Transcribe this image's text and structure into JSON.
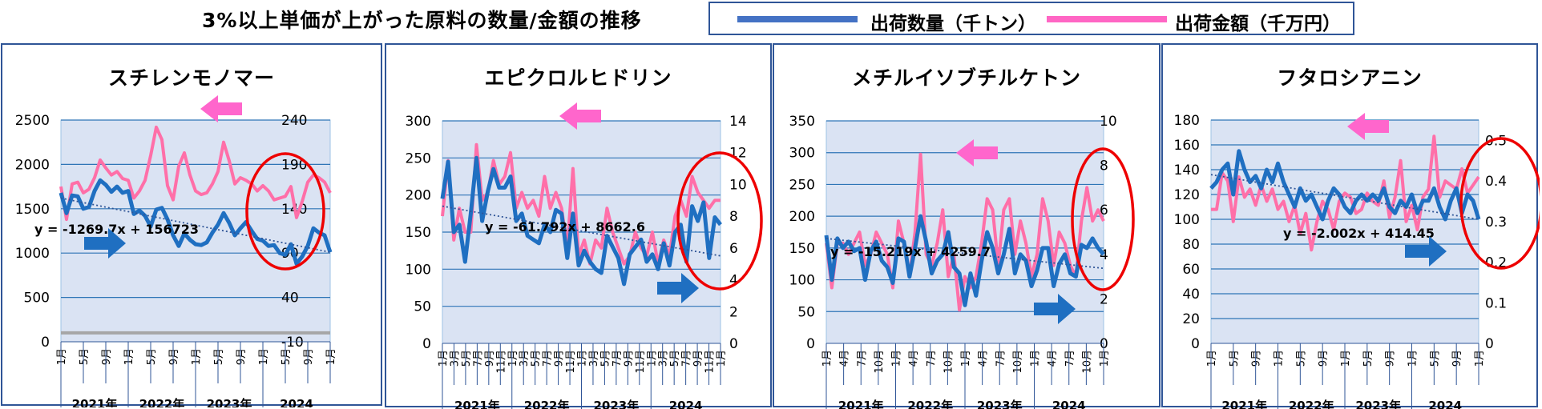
{
  "page": {
    "title": "3%以上単価が上がった原料の数量/金額の推移",
    "legend": [
      {
        "label": "出荷数量（千トン）",
        "color": "#4472c4"
      },
      {
        "label": "出荷金額（千万円）",
        "color": "#ff66c4"
      }
    ]
  },
  "chart_data": [
    {
      "type": "line",
      "title": "スチレンモノマー",
      "month_ticks": [
        "1月",
        "5月",
        "9月",
        "1月",
        "5月",
        "9月",
        "1月",
        "5月",
        "9月",
        "1月",
        "5月",
        "9月",
        "1月"
      ],
      "year_labels": [
        "2021年",
        "2022年",
        "2023年",
        "2024"
      ],
      "left_axis": {
        "min": 0,
        "max": 2500,
        "ticks": [
          0,
          500,
          1000,
          1500,
          2000,
          2500
        ]
      },
      "right_axis": {
        "min": -10,
        "max": 240,
        "ticks": [
          -10,
          40,
          90,
          140,
          190,
          240
        ]
      },
      "series": [
        {
          "name": "出荷数量（千トン）",
          "axis": "left",
          "color": "#1f6fc1",
          "values": [
            1680,
            1450,
            1650,
            1640,
            1500,
            1520,
            1700,
            1820,
            1770,
            1690,
            1750,
            1680,
            1700,
            1440,
            1480,
            1420,
            1300,
            1490,
            1510,
            1380,
            1200,
            1080,
            1220,
            1150,
            1100,
            1090,
            1120,
            1230,
            1320,
            1450,
            1340,
            1200,
            1280,
            1350,
            1250,
            1160,
            1140,
            1080,
            1090,
            1000,
            980,
            1100,
            880,
            960,
            1080,
            1280,
            1230,
            1200,
            1010
          ]
        },
        {
          "name": "出荷金額（千万円）",
          "axis": "right",
          "color": "#ff6fa8",
          "values": [
            165,
            128,
            168,
            170,
            158,
            162,
            175,
            195,
            186,
            178,
            182,
            174,
            172,
            152,
            160,
            172,
            200,
            232,
            218,
            166,
            150,
            188,
            203,
            178,
            160,
            156,
            158,
            168,
            182,
            215,
            194,
            168,
            175,
            172,
            168,
            160,
            166,
            160,
            150,
            152,
            154,
            165,
            130,
            148,
            170,
            178,
            175,
            170,
            158
          ]
        },
        {
          "name": "",
          "axis": "right",
          "color": "#a6a6a6",
          "values": [
            0,
            0,
            0,
            0,
            0,
            0,
            0,
            0,
            0,
            0,
            0,
            0,
            0,
            0,
            0,
            0,
            0,
            0,
            0,
            0,
            0,
            0,
            0,
            0,
            0,
            0,
            0,
            0,
            0,
            0,
            0,
            0,
            0,
            0,
            0,
            0,
            0,
            0,
            0,
            0,
            0,
            0,
            0,
            0,
            0,
            0,
            0,
            0,
            0
          ]
        }
      ],
      "trendline": {
        "label": "y = -1269.7x + 156723",
        "axis": "left",
        "start": 1620,
        "end": 1010
      },
      "arrows": {
        "pink": "left",
        "blue": "right"
      }
    },
    {
      "type": "line",
      "title": "エピクロルヒドリン",
      "month_ticks": [
        "1月",
        "3月",
        "5月",
        "7月",
        "9月",
        "11月",
        "1月",
        "3月",
        "5月",
        "7月",
        "9月",
        "11月",
        "1月",
        "3月",
        "5月",
        "7月",
        "9月",
        "11月",
        "1月",
        "3月",
        "5月",
        "7月",
        "9月",
        "11月",
        "1月"
      ],
      "year_labels": [
        "2021年",
        "2022年",
        "2023年",
        "2024"
      ],
      "left_axis": {
        "min": 0,
        "max": 300,
        "ticks": [
          0,
          50,
          100,
          150,
          200,
          250,
          300
        ]
      },
      "right_axis": {
        "min": 0,
        "max": 14,
        "ticks": [
          0,
          2,
          4,
          6,
          8,
          10,
          12,
          14
        ]
      },
      "series": [
        {
          "name": "出荷数量（千トン）",
          "axis": "left",
          "color": "#1f6fc1",
          "values": [
            195,
            245,
            150,
            160,
            110,
            175,
            250,
            165,
            205,
            235,
            210,
            210,
            225,
            165,
            175,
            145,
            140,
            135,
            160,
            150,
            180,
            175,
            115,
            175,
            105,
            125,
            110,
            100,
            95,
            145,
            130,
            115,
            80,
            120,
            130,
            140,
            110,
            120,
            100,
            135,
            105,
            150,
            160,
            110,
            185,
            165,
            190,
            115,
            170,
            160
          ]
        },
        {
          "name": "出荷金額（千万円）",
          "axis": "right",
          "color": "#ff6fa8",
          "values": [
            8.0,
            11.5,
            6.5,
            8.5,
            7.0,
            7.0,
            12.5,
            9.0,
            9.5,
            11.5,
            10.0,
            10.5,
            12.0,
            8.5,
            9.5,
            8.5,
            9.0,
            8.0,
            10.5,
            8.5,
            9.5,
            8.5,
            6.0,
            11.0,
            5.5,
            6.5,
            5.0,
            6.5,
            6.0,
            8.5,
            7.0,
            6.0,
            5.0,
            5.5,
            7.0,
            6.0,
            5.5,
            7.0,
            5.0,
            6.5,
            5.5,
            8.0,
            9.0,
            8.0,
            10.5,
            9.5,
            9.0,
            8.5,
            9.0,
            9.0
          ]
        }
      ],
      "trendline": {
        "label": "y = -61.792x + 8662.6",
        "axis": "left",
        "start": 185,
        "end": 118
      },
      "arrows": {
        "pink": "left",
        "blue": "right"
      }
    },
    {
      "type": "line",
      "title": "メチルイソブチルケトン",
      "month_ticks": [
        "1月",
        "4月",
        "7月",
        "10月",
        "1月",
        "4月",
        "7月",
        "10月",
        "1月",
        "4月",
        "7月",
        "10月",
        "1月",
        "4月",
        "7月",
        "10月",
        "1月"
      ],
      "year_labels": [
        "2021年",
        "2022年",
        "2023年",
        "2024"
      ],
      "left_axis": {
        "min": 0,
        "max": 350,
        "ticks": [
          0,
          50,
          100,
          150,
          200,
          250,
          300,
          350
        ]
      },
      "right_axis": {
        "min": 0,
        "max": 10,
        "ticks": [
          0,
          2,
          4,
          6,
          8,
          10
        ]
      },
      "series": [
        {
          "name": "出荷数量（千トン）",
          "axis": "left",
          "color": "#1f6fc1",
          "values": [
            170,
            100,
            165,
            150,
            160,
            145,
            150,
            100,
            145,
            160,
            130,
            120,
            95,
            165,
            160,
            105,
            150,
            200,
            160,
            110,
            130,
            140,
            175,
            120,
            110,
            60,
            110,
            75,
            130,
            175,
            150,
            110,
            140,
            180,
            110,
            140,
            130,
            90,
            115,
            150,
            150,
            90,
            125,
            140,
            110,
            105,
            155,
            150,
            165,
            150,
            140
          ]
        },
        {
          "name": "出荷金額（千万円）",
          "axis": "right",
          "color": "#ff6fa8",
          "values": [
            4.5,
            2.5,
            4.5,
            4.5,
            4.0,
            4.5,
            5.0,
            3.5,
            4.0,
            5.0,
            4.5,
            4.0,
            2.5,
            5.5,
            4.5,
            3.0,
            5.0,
            8.5,
            4.0,
            3.5,
            4.5,
            6.0,
            3.0,
            4.0,
            1.5,
            3.0,
            2.5,
            3.0,
            4.5,
            6.5,
            6.0,
            3.5,
            6.0,
            6.5,
            4.0,
            5.5,
            4.5,
            3.0,
            4.0,
            6.5,
            5.5,
            3.5,
            5.0,
            4.5,
            3.5,
            3.0,
            5.5,
            7.0,
            5.5,
            6.0,
            5.5
          ]
        }
      ],
      "trendline": {
        "label": "y = -15.219x + 4259.7",
        "axis": "left",
        "start": 165,
        "end": 118
      },
      "arrows": {
        "pink": "left",
        "blue": "right"
      }
    },
    {
      "type": "line",
      "title": "フタロシアニン",
      "month_ticks": [
        "1月",
        "5月",
        "9月",
        "1月",
        "5月",
        "9月",
        "1月",
        "5月",
        "9月",
        "1月",
        "5月",
        "9月",
        "1月"
      ],
      "year_labels": [
        "2021年",
        "2022年",
        "2023年",
        "2024"
      ],
      "left_axis": {
        "min": 0,
        "max": 180,
        "ticks": [
          0,
          20,
          40,
          60,
          80,
          100,
          120,
          140,
          160,
          180
        ]
      },
      "right_axis": {
        "min": 0,
        "max": 0.55,
        "ticks": [
          0,
          0.1,
          0.2,
          0.3,
          0.4,
          0.5
        ],
        "tick_labels": [
          "0",
          "0.1",
          "0.2",
          "0.3",
          "0.4",
          "0.5"
        ]
      },
      "series": [
        {
          "name": "出荷数量（千トン）",
          "axis": "left",
          "color": "#1f6fc1",
          "values": [
            125,
            130,
            140,
            145,
            120,
            155,
            140,
            130,
            135,
            125,
            140,
            130,
            145,
            130,
            120,
            110,
            125,
            115,
            120,
            110,
            100,
            115,
            125,
            120,
            110,
            105,
            115,
            120,
            115,
            120,
            115,
            125,
            110,
            105,
            115,
            110,
            120,
            105,
            115,
            115,
            125,
            110,
            100,
            115,
            125,
            105,
            120,
            115,
            100
          ]
        },
        {
          "name": "出荷金額（千万円）",
          "axis": "right",
          "color": "#ff6fa8",
          "values": [
            0.33,
            0.33,
            0.42,
            0.4,
            0.3,
            0.41,
            0.36,
            0.38,
            0.34,
            0.39,
            0.35,
            0.38,
            0.33,
            0.35,
            0.3,
            0.34,
            0.27,
            0.32,
            0.23,
            0.3,
            0.35,
            0.33,
            0.28,
            0.35,
            0.37,
            0.36,
            0.32,
            0.33,
            0.37,
            0.35,
            0.34,
            0.4,
            0.31,
            0.36,
            0.45,
            0.3,
            0.34,
            0.28,
            0.36,
            0.38,
            0.51,
            0.36,
            0.4,
            0.39,
            0.38,
            0.43,
            0.37,
            0.39,
            0.41
          ]
        }
      ],
      "trendline": {
        "label": "y = -2.002x + 414.45",
        "axis": "left",
        "start": 136,
        "end": 100
      },
      "arrows": {
        "pink": "left",
        "blue": "right"
      }
    }
  ]
}
